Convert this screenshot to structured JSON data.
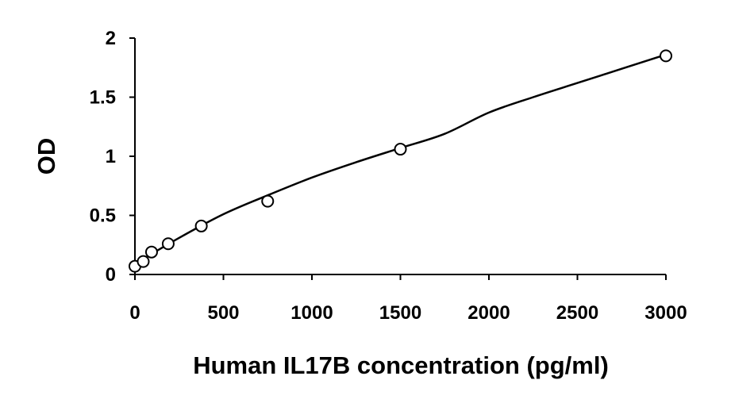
{
  "chart_data": {
    "type": "scatter",
    "title": "",
    "xlabel": "Human IL17B concentration (pg/ml)",
    "ylabel": "OD",
    "xlim": [
      0,
      3000
    ],
    "ylim": [
      0,
      2
    ],
    "x_ticks": [
      0,
      500,
      1000,
      1500,
      2000,
      2500,
      3000
    ],
    "y_ticks": [
      0,
      0.5,
      1,
      1.5,
      2
    ],
    "x_tick_labels": [
      "0",
      "500",
      "1000",
      "1500",
      "2000",
      "2500",
      "3000"
    ],
    "y_tick_labels": [
      "0",
      "0.5",
      "1",
      "1.5",
      "2"
    ],
    "grid": false,
    "legend": "none",
    "series": [
      {
        "marker": "open-circle",
        "x": [
          0,
          47,
          94,
          188,
          375,
          750,
          1500,
          3000
        ],
        "y": [
          0.07,
          0.11,
          0.19,
          0.26,
          0.41,
          0.62,
          1.06,
          1.85
        ]
      }
    ],
    "fit_curve": {
      "shape": "smooth-increasing",
      "x": [
        0,
        250,
        500,
        750,
        1000,
        1250,
        1500,
        1750,
        2000,
        2250,
        2500,
        2750,
        3000
      ],
      "y": [
        0.09,
        0.31,
        0.51,
        0.67,
        0.82,
        0.95,
        1.07,
        1.19,
        1.37,
        1.5,
        1.62,
        1.74,
        1.86
      ]
    },
    "colors": {
      "ink": "#000000",
      "background": "#ffffff",
      "marker_fill": "#ffffff"
    }
  }
}
